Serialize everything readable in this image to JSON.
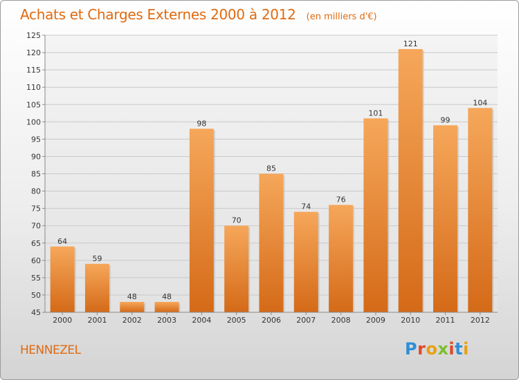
{
  "title": "Achats et Charges Externes 2000 à 2012",
  "unit": "(en milliers d'€)",
  "commune": "HENNEZEL",
  "logo": {
    "letters": [
      "P",
      "r",
      "o",
      "x",
      "i",
      "t",
      "i"
    ],
    "colors": [
      "#2e8fd6",
      "#e0482a",
      "#e8a012",
      "#7cbf2c",
      "#e0482a",
      "#2e8fd6",
      "#e8a012"
    ]
  },
  "colors": {
    "accent": "#e06a10",
    "bar_top": "#f6a75a",
    "bar_bottom": "#d46a18"
  },
  "chart_data": {
    "type": "bar",
    "title": "Achats et Charges Externes 2000 à 2012",
    "subtitle": "(en milliers d'€)",
    "categories": [
      "2000",
      "2001",
      "2002",
      "2003",
      "2004",
      "2005",
      "2006",
      "2007",
      "2008",
      "2009",
      "2010",
      "2011",
      "2012"
    ],
    "values": [
      64,
      59,
      48,
      48,
      98,
      70,
      85,
      74,
      76,
      101,
      121,
      99,
      104
    ],
    "xlabel": "",
    "ylabel": "",
    "ylim": [
      45,
      125
    ],
    "yticks": [
      45,
      50,
      55,
      60,
      65,
      70,
      75,
      80,
      85,
      90,
      95,
      100,
      105,
      110,
      115,
      120,
      125
    ],
    "grid": true,
    "data_labels": true
  }
}
